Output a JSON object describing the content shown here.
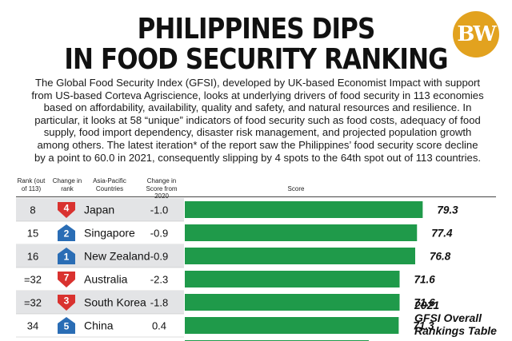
{
  "header": {
    "title_line1": "PHILIPPINES DIPS",
    "title_line2": "IN FOOD SECURITY RANKING",
    "logo": "BW",
    "description_lines": [
      "The Global Food Security Index (GFSI), developed by UK-based Economist Impact with support",
      "from US-based Corteva Agriscience, looks at underlying drivers of food security in 113 economies",
      "based on affordability, availability, quality and safety, and natural resources and resilience. In",
      "particular, it looks at 58 “unique” indicators of food security such as food costs, adequacy of food",
      "supply, food import dependency, disaster risk management, and projected population growth",
      "among others. The latest iteration* of the report saw the Philippines’ food security score decline",
      "by a point to 60.0 in 2021, consequently slipping by 4 spots to the 64th spot out of 113 countries."
    ]
  },
  "table": {
    "col_rank": "Rank (out of 113)",
    "col_change_rank": "Change in rank",
    "col_country": "Asia-Pacific Countries",
    "col_change_score": "Change in Score from 2020",
    "col_score": "Score"
  },
  "note": {
    "line1": "2021",
    "line2": "GFSI Overall",
    "line3": "Rankings Table"
  },
  "colors": {
    "bar": "#1f9a4a",
    "down": "#d9322f",
    "up": "#2a6db5",
    "row_alt": "#e3e4e6"
  },
  "chart_data": {
    "type": "bar",
    "title": "2021 GFSI Overall Rankings Table",
    "ylabel": "Score",
    "categories": [
      "Japan",
      "Singapore",
      "New Zealand",
      "Australia",
      "South Korea",
      "China"
    ],
    "values": [
      79.3,
      77.4,
      76.8,
      71.6,
      71.6,
      71.3
    ],
    "rank": [
      "8",
      "15",
      "16",
      "=32",
      "=32",
      "34"
    ],
    "change_in_rank": [
      4,
      2,
      1,
      7,
      3,
      5
    ],
    "change_direction": [
      "down",
      "up",
      "up",
      "down",
      "down",
      "up"
    ],
    "change_in_score": [
      "-1.0",
      "-0.9",
      "-0.9",
      "-2.3",
      "-1.8",
      "0.4"
    ]
  }
}
